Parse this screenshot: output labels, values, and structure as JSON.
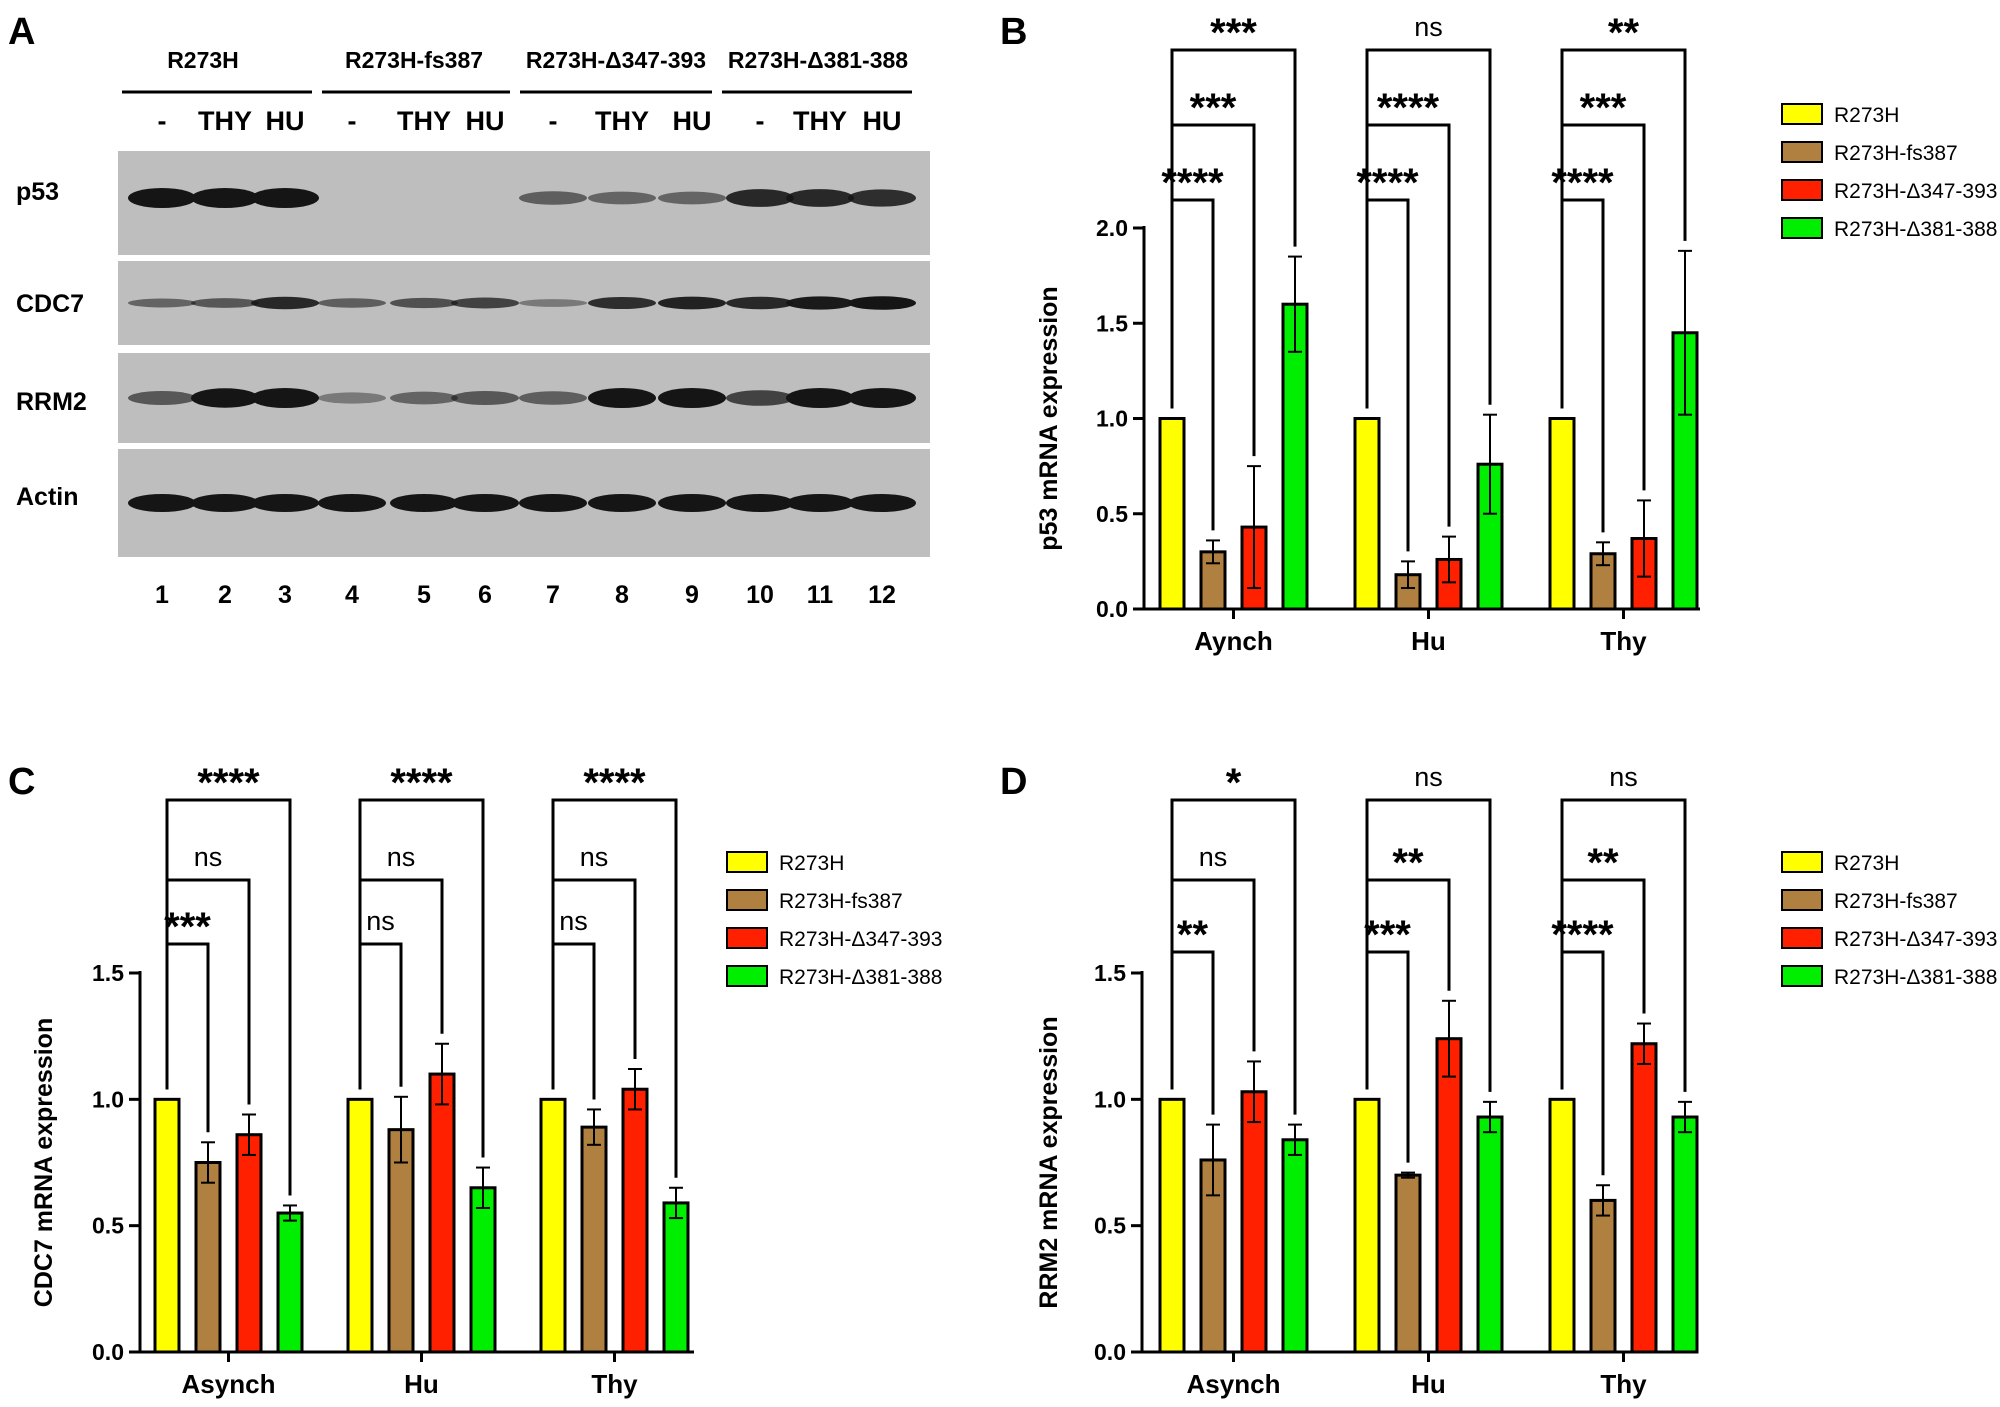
{
  "panel_letters": {
    "a": "A",
    "b": "B",
    "c": "C",
    "d": "D"
  },
  "colors": {
    "R273H": "#ffff00",
    "R273H-fs387": "#b08040",
    "R273H-Δ347-393": "#ff2000",
    "R273H-Δ381-388": "#00ee00",
    "blot_bg": "#bebebe",
    "band": "#151515"
  },
  "blot": {
    "groups": [
      {
        "label": "R273H",
        "treatments": [
          "-",
          "THY",
          "HU"
        ]
      },
      {
        "label": "R273H-fs387",
        "treatments": [
          "-",
          "THY",
          "HU"
        ]
      },
      {
        "label": "R273H-Δ347-393",
        "treatments": [
          "-",
          "THY",
          "HU"
        ]
      },
      {
        "label": "R273H-Δ381-388",
        "treatments": [
          "-",
          "THY",
          "HU"
        ]
      }
    ],
    "lanes": [
      "1",
      "2",
      "3",
      "4",
      "5",
      "6",
      "7",
      "8",
      "9",
      "10",
      "11",
      "12"
    ],
    "rows": [
      {
        "label": "p53",
        "intensity": [
          1,
          1,
          1,
          0,
          0,
          0,
          0.4,
          0.35,
          0.35,
          0.8,
          0.8,
          0.75
        ]
      },
      {
        "label": "CDC7",
        "intensity": [
          0.35,
          0.45,
          0.8,
          0.4,
          0.5,
          0.6,
          0.2,
          0.75,
          0.85,
          0.8,
          0.9,
          0.95
        ]
      },
      {
        "label": "RRM2",
        "intensity": [
          0.45,
          0.95,
          1,
          0.2,
          0.35,
          0.45,
          0.4,
          1,
          1,
          0.6,
          1,
          1
        ]
      },
      {
        "label": "Actin",
        "intensity": [
          1,
          1,
          1,
          1,
          1,
          1,
          1,
          1,
          1,
          1,
          1,
          1
        ]
      }
    ]
  },
  "chart_data": [
    {
      "type": "bar",
      "panel": "B",
      "ylabel": "p53 mRNA expression",
      "xlabel": "",
      "categories": [
        "Aynch",
        "Hu",
        "Thy"
      ],
      "ylim": [
        0,
        2.0
      ],
      "yticks": [
        "0.0",
        "0.5",
        "1.0",
        "1.5",
        "2.0"
      ],
      "series": [
        {
          "name": "R273H",
          "values": [
            1.0,
            1.0,
            1.0
          ],
          "errors": [
            0,
            0,
            0
          ]
        },
        {
          "name": "R273H-fs387",
          "values": [
            0.3,
            0.18,
            0.29
          ],
          "errors": [
            0.06,
            0.07,
            0.06
          ]
        },
        {
          "name": "R273H-Δ347-393",
          "values": [
            0.43,
            0.26,
            0.37
          ],
          "errors": [
            0.32,
            0.12,
            0.2
          ]
        },
        {
          "name": "R273H-Δ381-388",
          "values": [
            1.6,
            0.76,
            1.45
          ],
          "errors": [
            0.25,
            0.26,
            0.43
          ]
        }
      ],
      "significance": [
        [
          {
            "to": 1,
            "label": "****"
          },
          {
            "to": 2,
            "label": "***"
          },
          {
            "to": 3,
            "label": "***"
          }
        ],
        [
          {
            "to": 1,
            "label": "****"
          },
          {
            "to": 2,
            "label": "****"
          },
          {
            "to": 3,
            "label": "ns"
          }
        ],
        [
          {
            "to": 1,
            "label": "****"
          },
          {
            "to": 2,
            "label": "***"
          },
          {
            "to": 3,
            "label": "**"
          }
        ]
      ],
      "legend": [
        "R273H",
        "R273H-fs387",
        "R273H-Δ347-393",
        "R273H-Δ381-388"
      ]
    },
    {
      "type": "bar",
      "panel": "C",
      "ylabel": "CDC7 mRNA expression",
      "xlabel": "",
      "categories": [
        "Asynch",
        "Hu",
        "Thy"
      ],
      "ylim": [
        0,
        1.5
      ],
      "yticks": [
        "0.0",
        "0.5",
        "1.0",
        "1.5"
      ],
      "series": [
        {
          "name": "R273H",
          "values": [
            1.0,
            1.0,
            1.0
          ],
          "errors": [
            0,
            0,
            0
          ]
        },
        {
          "name": "R273H-fs387",
          "values": [
            0.75,
            0.88,
            0.89
          ],
          "errors": [
            0.08,
            0.13,
            0.07
          ]
        },
        {
          "name": "R273H-Δ347-393",
          "values": [
            0.86,
            1.1,
            1.04
          ],
          "errors": [
            0.08,
            0.12,
            0.08
          ]
        },
        {
          "name": "R273H-Δ381-388",
          "values": [
            0.55,
            0.65,
            0.59
          ],
          "errors": [
            0.03,
            0.08,
            0.06
          ]
        }
      ],
      "significance": [
        [
          {
            "to": 1,
            "label": "***"
          },
          {
            "to": 2,
            "label": "ns"
          },
          {
            "to": 3,
            "label": "****"
          }
        ],
        [
          {
            "to": 1,
            "label": "ns"
          },
          {
            "to": 2,
            "label": "ns"
          },
          {
            "to": 3,
            "label": "****"
          }
        ],
        [
          {
            "to": 1,
            "label": "ns"
          },
          {
            "to": 2,
            "label": "ns"
          },
          {
            "to": 3,
            "label": "****"
          }
        ]
      ],
      "legend": [
        "R273H",
        "R273H-fs387",
        "R273H-Δ347-393",
        "R273H-Δ381-388"
      ]
    },
    {
      "type": "bar",
      "panel": "D",
      "ylabel": "RRM2 mRNA expression",
      "xlabel": "",
      "categories": [
        "Asynch",
        "Hu",
        "Thy"
      ],
      "ylim": [
        0,
        1.5
      ],
      "yticks": [
        "0.0",
        "0.5",
        "1.0",
        "1.5"
      ],
      "series": [
        {
          "name": "R273H",
          "values": [
            1.0,
            1.0,
            1.0
          ],
          "errors": [
            0,
            0,
            0
          ]
        },
        {
          "name": "R273H-fs387",
          "values": [
            0.76,
            0.7,
            0.6
          ],
          "errors": [
            0.14,
            0.01,
            0.06
          ]
        },
        {
          "name": "R273H-Δ347-393",
          "values": [
            1.03,
            1.24,
            1.22
          ],
          "errors": [
            0.12,
            0.15,
            0.08
          ]
        },
        {
          "name": "R273H-Δ381-388",
          "values": [
            0.84,
            0.93,
            0.93
          ],
          "errors": [
            0.06,
            0.06,
            0.06
          ]
        }
      ],
      "significance": [
        [
          {
            "to": 1,
            "label": "**"
          },
          {
            "to": 2,
            "label": "ns"
          },
          {
            "to": 3,
            "label": "*"
          }
        ],
        [
          {
            "to": 1,
            "label": "***"
          },
          {
            "to": 2,
            "label": "**"
          },
          {
            "to": 3,
            "label": "ns"
          }
        ],
        [
          {
            "to": 1,
            "label": "****"
          },
          {
            "to": 2,
            "label": "**"
          },
          {
            "to": 3,
            "label": "ns"
          }
        ]
      ],
      "legend": [
        "R273H",
        "R273H-fs387",
        "R273H-Δ347-393",
        "R273H-Δ381-388"
      ]
    }
  ]
}
